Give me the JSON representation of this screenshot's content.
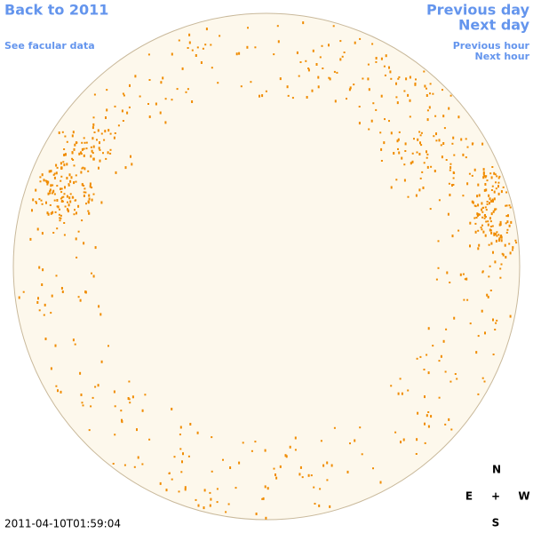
{
  "header": {
    "back_link": "Back to 2011",
    "facular_link": "See facular data",
    "previous_day": "Previous day",
    "next_day": "Next day",
    "previous_hour": "Previous hour",
    "next_hour": "Next hour"
  },
  "timestamp": "2011-04-10T01:59:04",
  "compass": {
    "north": "N",
    "east": "E",
    "center": "+",
    "west": "W",
    "south": "S"
  }
}
